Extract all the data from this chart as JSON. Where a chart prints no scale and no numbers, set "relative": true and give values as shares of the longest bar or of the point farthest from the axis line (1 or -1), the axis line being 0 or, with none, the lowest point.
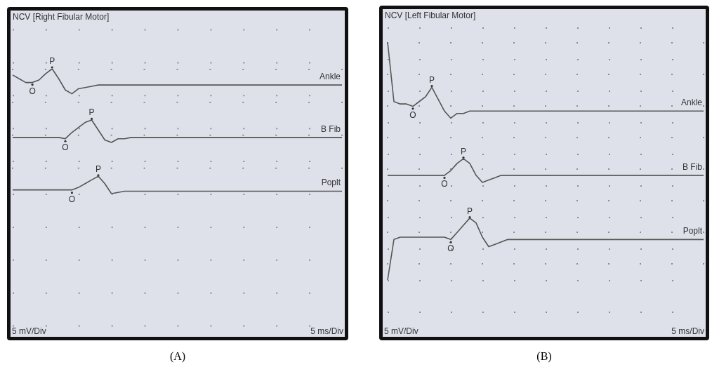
{
  "chart_data": [
    {
      "type": "line",
      "title": "NCV [Right Fibular Motor]",
      "relative": true,
      "grid": true,
      "marker": "none",
      "line_style": "solid",
      "categories": [
        null,
        null,
        null,
        null,
        null,
        null,
        null,
        null,
        null,
        null,
        null,
        null,
        null,
        null,
        null,
        null,
        null,
        null,
        null,
        null,
        null,
        null,
        null,
        null,
        null,
        null,
        null,
        null,
        null,
        null,
        null,
        null,
        null,
        null,
        null,
        null,
        null,
        null,
        null,
        null,
        null,
        null,
        null,
        null,
        null,
        null,
        null,
        null,
        null,
        null,
        null
      ],
      "series": [
        {
          "name": "Ankle",
          "color": "#555555",
          "values": [
            0.95,
            0.92,
            0.89,
            0.89,
            0.91,
            0.96,
            1,
            0.92,
            0.83,
            0.8,
            0.84,
            0.85,
            0.86,
            0.87,
            0.87,
            0.87,
            0.87,
            0.87,
            0.87,
            0.87,
            0.87,
            0.87,
            0.87,
            0.87,
            0.87,
            0.87,
            0.87,
            0.87,
            0.87,
            0.87,
            0.87,
            0.87,
            0.87,
            0.87,
            0.87,
            0.87,
            0.87,
            0.87,
            0.87,
            0.87,
            0.87,
            0.87,
            0.87,
            0.87,
            0.87,
            0.87,
            0.87,
            0.87,
            0.87,
            0.87,
            0.87
          ]
        },
        {
          "name": "B Fib",
          "color": "#555555",
          "values": [
            0.45,
            0.45,
            0.45,
            0.45,
            0.45,
            0.45,
            0.45,
            0.45,
            0.44,
            0.49,
            0.53,
            0.57,
            0.59,
            0.51,
            0.43,
            0.41,
            0.44,
            0.44,
            0.45,
            0.45,
            0.45,
            0.45,
            0.45,
            0.45,
            0.45,
            0.45,
            0.45,
            0.45,
            0.45,
            0.45,
            0.45,
            0.45,
            0.45,
            0.45,
            0.45,
            0.45,
            0.45,
            0.45,
            0.45,
            0.45,
            0.45,
            0.45,
            0.45,
            0.45,
            0.45,
            0.45,
            0.45,
            0.45,
            0.45,
            0.45,
            0.45
          ]
        },
        {
          "name": "Poplt",
          "color": "#555555",
          "values": [
            0.03,
            0.03,
            0.03,
            0.03,
            0.03,
            0.03,
            0.03,
            0.03,
            0.03,
            0.03,
            0.05,
            0.08,
            0.11,
            0.14,
            0.08,
            0,
            0.01,
            0.02,
            0.02,
            0.02,
            0.02,
            0.02,
            0.02,
            0.02,
            0.02,
            0.02,
            0.02,
            0.02,
            0.02,
            0.02,
            0.02,
            0.02,
            0.02,
            0.02,
            0.02,
            0.02,
            0.02,
            0.02,
            0.02,
            0.02,
            0.02,
            0.02,
            0.02,
            0.02,
            0.02,
            0.02,
            0.02,
            0.02,
            0.02,
            0.02,
            0.02
          ]
        }
      ],
      "annotations": [
        "5 mV/Div",
        "5 ms/Div",
        "(A)",
        "O",
        "P",
        "O",
        "P",
        "O",
        "P"
      ]
    },
    {
      "type": "line",
      "title": "NCV [Left Fibular Motor]",
      "relative": true,
      "grid": true,
      "marker": "none",
      "line_style": "solid",
      "categories": [
        null,
        null,
        null,
        null,
        null,
        null,
        null,
        null,
        null,
        null,
        null,
        null,
        null,
        null,
        null,
        null,
        null,
        null,
        null,
        null,
        null,
        null,
        null,
        null,
        null,
        null,
        null,
        null,
        null,
        null,
        null,
        null,
        null,
        null,
        null,
        null,
        null,
        null,
        null,
        null,
        null,
        null,
        null,
        null,
        null,
        null,
        null,
        null,
        null,
        null,
        null
      ],
      "series": [
        {
          "name": "Ankle",
          "color": "#555555",
          "values": [
            1,
            0.75,
            0.74,
            0.74,
            0.73,
            0.75,
            0.77,
            0.81,
            0.76,
            0.71,
            0.68,
            0.7,
            0.7,
            0.71,
            0.71,
            0.71,
            0.71,
            0.71,
            0.71,
            0.71,
            0.71,
            0.71,
            0.71,
            0.71,
            0.71,
            0.71,
            0.71,
            0.71,
            0.71,
            0.71,
            0.71,
            0.71,
            0.71,
            0.71,
            0.71,
            0.71,
            0.71,
            0.71,
            0.71,
            0.71,
            0.71,
            0.71,
            0.71,
            0.71,
            0.71,
            0.71,
            0.71,
            0.71,
            0.71,
            0.71,
            0.71
          ]
        },
        {
          "name": "B Fib",
          "color": "#555555",
          "values": [
            0.44,
            0.44,
            0.44,
            0.44,
            0.44,
            0.44,
            0.44,
            0.44,
            0.44,
            0.44,
            0.46,
            0.49,
            0.51,
            0.49,
            0.44,
            0.41,
            0.42,
            0.43,
            0.44,
            0.44,
            0.44,
            0.44,
            0.44,
            0.44,
            0.44,
            0.44,
            0.44,
            0.44,
            0.44,
            0.44,
            0.44,
            0.44,
            0.44,
            0.44,
            0.44,
            0.44,
            0.44,
            0.44,
            0.44,
            0.44,
            0.44,
            0.44,
            0.44,
            0.44,
            0.44,
            0.44,
            0.44,
            0.44,
            0.44,
            0.44,
            0.44
          ]
        },
        {
          "name": "Poplt",
          "color": "#555555",
          "values": [
            0,
            0.17,
            0.18,
            0.18,
            0.18,
            0.18,
            0.18,
            0.18,
            0.18,
            0.18,
            0.17,
            0.2,
            0.23,
            0.26,
            0.24,
            0.18,
            0.14,
            0.15,
            0.16,
            0.17,
            0.17,
            0.17,
            0.17,
            0.17,
            0.17,
            0.17,
            0.17,
            0.17,
            0.17,
            0.17,
            0.17,
            0.17,
            0.17,
            0.17,
            0.17,
            0.17,
            0.17,
            0.17,
            0.17,
            0.17,
            0.17,
            0.17,
            0.17,
            0.17,
            0.17,
            0.17,
            0.17,
            0.17,
            0.17,
            0.17,
            0.17
          ]
        }
      ],
      "annotations": [
        "5 mV/Div",
        "5 ms/Div",
        "(B)",
        "O",
        "P",
        "O",
        "P",
        "O",
        "P"
      ]
    }
  ]
}
